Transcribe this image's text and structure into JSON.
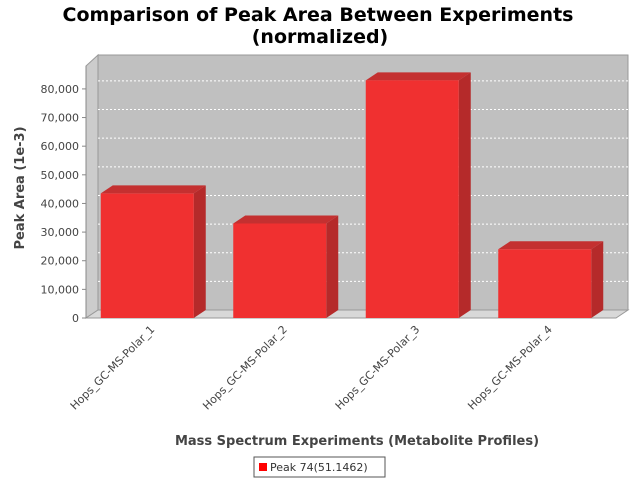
{
  "chart_data": {
    "type": "bar",
    "title_line1": "Comparison of Peak Area Between Experiments",
    "title_line2": "(normalized)",
    "xlabel": "Mass Spectrum Experiments (Metabolite Profiles)",
    "ylabel": "Peak Area (1e-3)",
    "categories": [
      "Hops_GC-MS-Polar_1",
      "Hops_GC-MS-Polar_2",
      "Hops_GC-MS-Polar_3",
      "Hops_GC-MS-Polar_4"
    ],
    "series": [
      {
        "name": "Peak 74(51.1462)",
        "values": [
          43500,
          33000,
          83000,
          24000
        ],
        "color": "#f03030"
      }
    ],
    "ylim": [
      0,
      88000
    ],
    "yticks": [
      0,
      10000,
      20000,
      30000,
      40000,
      50000,
      60000,
      70000,
      80000
    ],
    "ytick_labels": [
      "0",
      "10,000",
      "20,000",
      "30,000",
      "40,000",
      "50,000",
      "60,000",
      "70,000",
      "80,000"
    ],
    "grid": true,
    "three_d": true,
    "plot_background": "#c0c0c0",
    "legend_position": "bottom-center"
  }
}
